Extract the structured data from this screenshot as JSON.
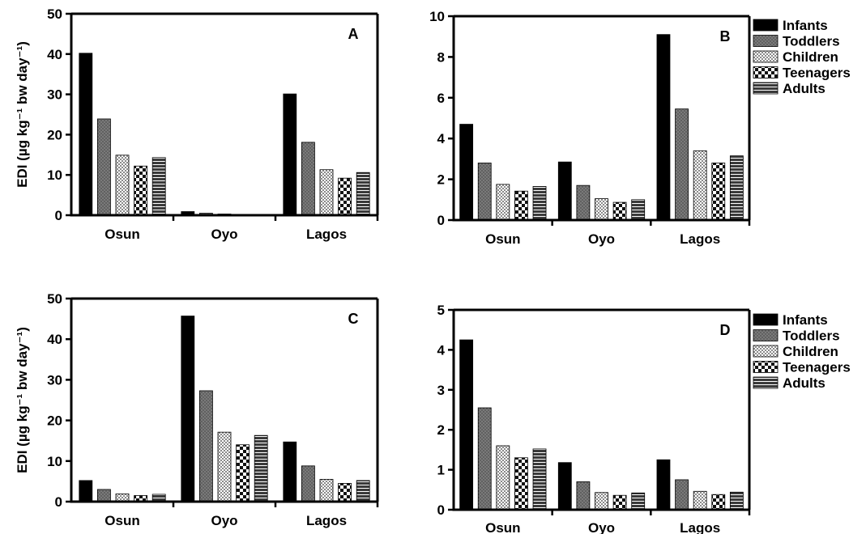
{
  "y_axis_label": "EDI (µg kg⁻¹ bw day⁻¹)",
  "series_names": [
    "Infants",
    "Toddlers",
    "Children",
    "Teenagers",
    "Adults"
  ],
  "chart_data": [
    {
      "type": "bar",
      "panel_label": "A",
      "categories": [
        "Osun",
        "Oyo",
        "Lagos"
      ],
      "ylim": [
        0,
        50
      ],
      "yticks": [
        "0",
        "10",
        "20",
        "30",
        "40",
        "50"
      ],
      "series": [
        {
          "name": "Infants",
          "values": [
            40.2,
            0.9,
            30.1
          ]
        },
        {
          "name": "Toddlers",
          "values": [
            23.9,
            0.5,
            18.1
          ]
        },
        {
          "name": "Children",
          "values": [
            14.9,
            0.3,
            11.3
          ]
        },
        {
          "name": "Teenagers",
          "values": [
            12.2,
            0.2,
            9.2
          ]
        },
        {
          "name": "Adults",
          "values": [
            14.3,
            0.2,
            10.6
          ]
        }
      ]
    },
    {
      "type": "bar",
      "panel_label": "B",
      "categories": [
        "Osun",
        "Oyo",
        "Lagos"
      ],
      "ylim": [
        0,
        10
      ],
      "yticks": [
        "0",
        "2",
        "4",
        "6",
        "8",
        "10"
      ],
      "legend": "top-right",
      "series": [
        {
          "name": "Infants",
          "values": [
            4.7,
            2.85,
            9.1
          ]
        },
        {
          "name": "Toddlers",
          "values": [
            2.8,
            1.7,
            5.45
          ]
        },
        {
          "name": "Children",
          "values": [
            1.75,
            1.05,
            3.4
          ]
        },
        {
          "name": "Teenagers",
          "values": [
            1.42,
            0.87,
            2.8
          ]
        },
        {
          "name": "Adults",
          "values": [
            1.65,
            1.0,
            3.15
          ]
        }
      ]
    },
    {
      "type": "bar",
      "panel_label": "C",
      "categories": [
        "Osun",
        "Oyo",
        "Lagos"
      ],
      "ylim": [
        0,
        50
      ],
      "yticks": [
        "0",
        "10",
        "20",
        "30",
        "40",
        "50"
      ],
      "series": [
        {
          "name": "Infants",
          "values": [
            5.2,
            45.7,
            14.7
          ]
        },
        {
          "name": "Toddlers",
          "values": [
            3.0,
            27.3,
            8.8
          ]
        },
        {
          "name": "Children",
          "values": [
            1.9,
            17.1,
            5.5
          ]
        },
        {
          "name": "Teenagers",
          "values": [
            1.5,
            14.0,
            4.5
          ]
        },
        {
          "name": "Adults",
          "values": [
            1.8,
            16.3,
            5.2
          ]
        }
      ]
    },
    {
      "type": "bar",
      "panel_label": "D",
      "categories": [
        "Osun",
        "Oyo",
        "Lagos"
      ],
      "ylim": [
        0,
        5
      ],
      "yticks": [
        "0",
        "1",
        "2",
        "3",
        "4",
        "5"
      ],
      "legend": "top-right",
      "series": [
        {
          "name": "Infants",
          "values": [
            4.25,
            1.18,
            1.25
          ]
        },
        {
          "name": "Toddlers",
          "values": [
            2.55,
            0.7,
            0.75
          ]
        },
        {
          "name": "Children",
          "values": [
            1.6,
            0.43,
            0.46
          ]
        },
        {
          "name": "Teenagers",
          "values": [
            1.3,
            0.36,
            0.38
          ]
        },
        {
          "name": "Adults",
          "values": [
            1.52,
            0.42,
            0.44
          ]
        }
      ]
    }
  ]
}
